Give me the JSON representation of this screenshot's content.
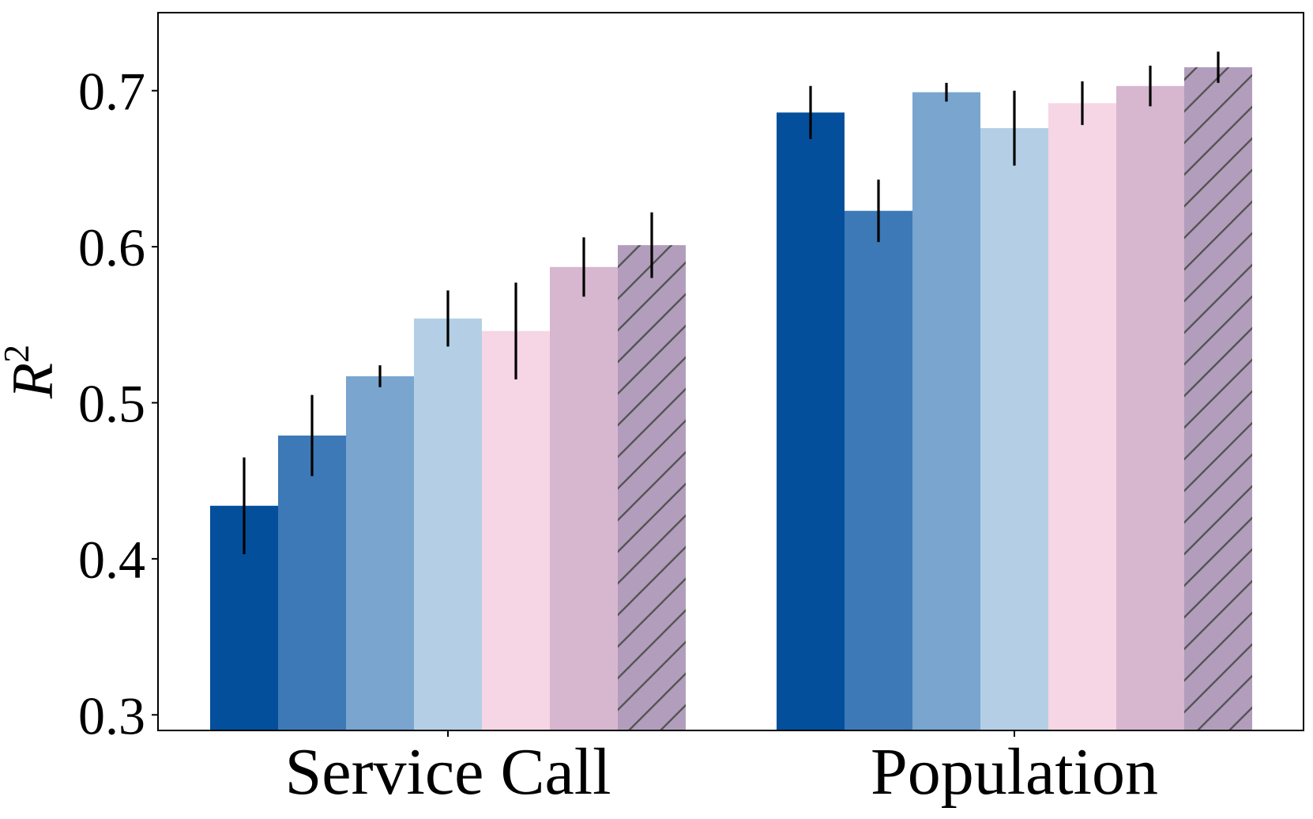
{
  "chart_data": {
    "type": "bar",
    "categories": [
      "Service Call",
      "Population"
    ],
    "ylabel": "R",
    "ylabel_superscript": "2",
    "ylim": [
      0.29,
      0.75
    ],
    "yticks": [
      0.3,
      0.4,
      0.5,
      0.6,
      0.7
    ],
    "ytick_labels": [
      "0.3",
      "0.4",
      "0.5",
      "0.6",
      "0.7"
    ],
    "grid": false,
    "legend": "none",
    "series": [
      {
        "color": "#044f9c",
        "hatch": false,
        "values": [
          0.434,
          0.686
        ],
        "errors": [
          0.031,
          0.017
        ]
      },
      {
        "color": "#3d79b6",
        "hatch": false,
        "values": [
          0.479,
          0.623
        ],
        "errors": [
          0.026,
          0.02
        ]
      },
      {
        "color": "#79a5cf",
        "hatch": false,
        "values": [
          0.517,
          0.699
        ],
        "errors": [
          0.007,
          0.006
        ]
      },
      {
        "color": "#b4cfe5",
        "hatch": false,
        "values": [
          0.554,
          0.676
        ],
        "errors": [
          0.018,
          0.024
        ]
      },
      {
        "color": "#f6d5e4",
        "hatch": false,
        "values": [
          0.546,
          0.692
        ],
        "errors": [
          0.031,
          0.014
        ]
      },
      {
        "color": "#d6b7cf",
        "hatch": false,
        "values": [
          0.587,
          0.703
        ],
        "errors": [
          0.019,
          0.013
        ]
      },
      {
        "color": "#b29ebc",
        "hatch": true,
        "values": [
          0.601,
          0.715
        ],
        "errors": [
          0.021,
          0.01
        ]
      }
    ]
  }
}
